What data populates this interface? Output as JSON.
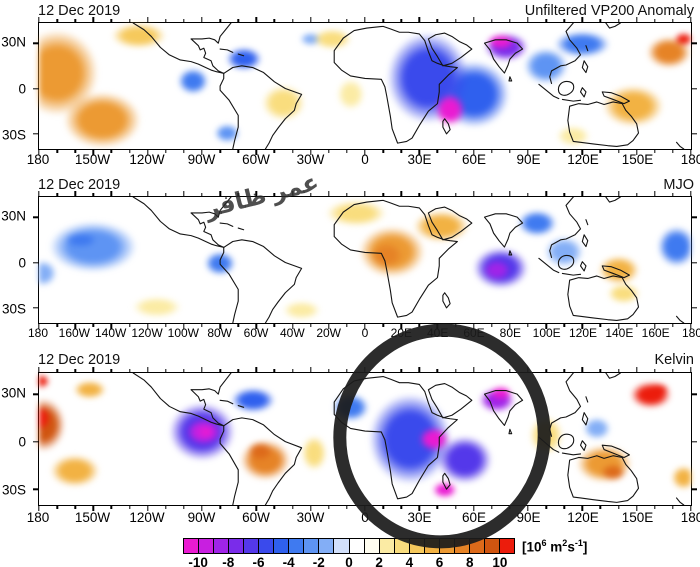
{
  "panels": [
    {
      "date": "12 Dec 2019",
      "title": "Unfiltered VP200 Anomaly",
      "lat_labels": [
        "30N",
        "0",
        "30S"
      ],
      "lon_labels": [
        "180",
        "150W",
        "120W",
        "90W",
        "60W",
        "30W",
        "0",
        "30E",
        "60E",
        "90E",
        "120E",
        "150E",
        "180"
      ],
      "minor_per_major": 3
    },
    {
      "date": "12 Dec 2019",
      "title": "MJO",
      "lat_labels": [
        "30N",
        "0",
        "30S"
      ],
      "lon_labels": [
        "180",
        "160W",
        "140W",
        "120W",
        "100W",
        "80W",
        "60W",
        "40W",
        "20W",
        "0",
        "20E",
        "40E",
        "60E",
        "80E",
        "100E",
        "120E",
        "140E",
        "160E",
        "180"
      ],
      "minor_per_major": 2
    },
    {
      "date": "12 Dec 2019",
      "title": "Kelvin",
      "lat_labels": [
        "30N",
        "0",
        "30S"
      ],
      "lon_labels": [
        "180",
        "150W",
        "120W",
        "90W",
        "60W",
        "30W",
        "0",
        "30E",
        "60E",
        "90E",
        "120E",
        "150E",
        "180"
      ],
      "minor_per_major": 3
    }
  ],
  "colorbar": {
    "ticks": [
      "-10",
      "-8",
      "-6",
      "-4",
      "-2",
      "0",
      "2",
      "4",
      "6",
      "8",
      "10"
    ],
    "value_range": [
      -11,
      11
    ],
    "colors": [
      "#ea1bd2",
      "#c81fe0",
      "#a024e8",
      "#7a2cea",
      "#5438ea",
      "#3a4aec",
      "#2f60ee",
      "#3f7af0",
      "#5e94f3",
      "#83aef6",
      "#d2e0fb",
      "#ffffff",
      "#fffdf0",
      "#fbeba4",
      "#f9dd7e",
      "#f6c95c",
      "#f2b243",
      "#ec9a33",
      "#e68326",
      "#dd6a1a",
      "#d05510",
      "#ec1c0c"
    ],
    "units_parts": {
      "open": "[10",
      "exp1": "6",
      "mid": " m",
      "exp2": "2",
      "s": "s",
      "exp3": "-1",
      "close": "]"
    }
  },
  "annotation": {
    "type": "hand-drawn-circle",
    "color": "#1c1c1c",
    "highlighted_region": "negative VP200 Kelvin-wave anomaly over Africa / Arabian Sea (approx 0-80E)"
  },
  "watermark": {
    "text": "عمر ظافر"
  },
  "chart_data": {
    "type": "heatmap",
    "subtype": "filled-contour velocity-potential anomaly maps, 3 stacked global panels",
    "date": "12 Dec 2019",
    "colorbar_ticks": [
      -10,
      -8,
      -6,
      -4,
      -2,
      0,
      2,
      4,
      6,
      8,
      10
    ],
    "units": "10^6 m2 s-1",
    "lat_range": [
      -37.5,
      37.5
    ],
    "lon_range": [
      -180,
      180
    ],
    "panels": [
      {
        "title": "Unfiltered VP200 Anomaly",
        "centers": [
          {
            "lon": -170,
            "lat": 8,
            "v": 6,
            "rx": 30,
            "ry": 34
          },
          {
            "lon": -145,
            "lat": -20,
            "v": 6,
            "rx": 28,
            "ry": 22
          },
          {
            "lon": -125,
            "lat": 30,
            "v": 4,
            "rx": 20,
            "ry": 10
          },
          {
            "lon": -95,
            "lat": 3,
            "v": -4,
            "rx": 11,
            "ry": 10
          },
          {
            "lon": -67,
            "lat": 16,
            "v": -5,
            "rx": 13,
            "ry": 9
          },
          {
            "lon": -76,
            "lat": -28,
            "v": -3,
            "rx": 9,
            "ry": 7
          },
          {
            "lon": -45,
            "lat": -10,
            "v": 3,
            "rx": 16,
            "ry": 14
          },
          {
            "lon": -18,
            "lat": 28,
            "v": 3,
            "rx": 14,
            "ry": 8
          },
          {
            "lon": -30,
            "lat": 28,
            "v": -2,
            "rx": 8,
            "ry": 5
          },
          {
            "lon": -8,
            "lat": -5,
            "v": 2,
            "rx": 10,
            "ry": 12
          },
          {
            "lon": 35,
            "lat": 5,
            "v": -6,
            "rx": 30,
            "ry": 36
          },
          {
            "lon": 60,
            "lat": -5,
            "v": -5,
            "rx": 26,
            "ry": 26
          },
          {
            "lon": 47,
            "lat": -14,
            "v": -11.5,
            "rx": 11,
            "ry": 13
          },
          {
            "lon": 75,
            "lat": 26,
            "v": -11.5,
            "rx": 10,
            "ry": 6
          },
          {
            "lon": 78,
            "lat": 23,
            "v": -8,
            "rx": 16,
            "ry": 11
          },
          {
            "lon": 100,
            "lat": 12,
            "v": -3,
            "rx": 16,
            "ry": 14
          },
          {
            "lon": 120,
            "lat": 25,
            "v": -4,
            "rx": 20,
            "ry": 10
          },
          {
            "lon": 115,
            "lat": -30,
            "v": 2,
            "rx": 12,
            "ry": 8
          },
          {
            "lon": 148,
            "lat": -12,
            "v": 5,
            "rx": 22,
            "ry": 16
          },
          {
            "lon": 168,
            "lat": 20,
            "v": 7,
            "rx": 16,
            "ry": 12
          },
          {
            "lon": 176,
            "lat": 28,
            "v": 10.5,
            "rx": 7,
            "ry": 5
          }
        ]
      },
      {
        "title": "MJO",
        "centers": [
          {
            "lon": -150,
            "lat": 8,
            "v": -3,
            "rx": 32,
            "ry": 20
          },
          {
            "lon": -157,
            "lat": 12,
            "v": -4,
            "rx": 12,
            "ry": 6
          },
          {
            "lon": -80,
            "lat": -2,
            "v": -4,
            "rx": 11,
            "ry": 9
          },
          {
            "lon": -115,
            "lat": -28,
            "v": 2,
            "rx": 18,
            "ry": 8
          },
          {
            "lon": -35,
            "lat": -30,
            "v": 2,
            "rx": 14,
            "ry": 7
          },
          {
            "lon": -5,
            "lat": 28,
            "v": 3,
            "rx": 22,
            "ry": 10
          },
          {
            "lon": 15,
            "lat": 5,
            "v": 6,
            "rx": 24,
            "ry": 20
          },
          {
            "lon": 12,
            "lat": 3,
            "v": 7.5,
            "rx": 12,
            "ry": 10
          },
          {
            "lon": 42,
            "lat": 20,
            "v": 5,
            "rx": 20,
            "ry": 12
          },
          {
            "lon": 75,
            "lat": -5,
            "v": -7,
            "rx": 20,
            "ry": 16
          },
          {
            "lon": 73,
            "lat": -6,
            "v": -8.5,
            "rx": 10,
            "ry": 8
          },
          {
            "lon": 95,
            "lat": 22,
            "v": -4,
            "rx": 14,
            "ry": 10
          },
          {
            "lon": 110,
            "lat": 5,
            "v": -2,
            "rx": 14,
            "ry": 12
          },
          {
            "lon": 140,
            "lat": -6,
            "v": 5,
            "rx": 15,
            "ry": 11
          },
          {
            "lon": 143,
            "lat": -20,
            "v": 3,
            "rx": 12,
            "ry": 8
          },
          {
            "lon": 172,
            "lat": 8,
            "v": -4,
            "rx": 14,
            "ry": 16
          },
          {
            "lon": -178,
            "lat": -8,
            "v": -2,
            "rx": 10,
            "ry": 10
          }
        ]
      },
      {
        "title": "Kelvin",
        "centers": [
          {
            "lon": -178,
            "lat": 8,
            "v": 9,
            "rx": 16,
            "ry": 20
          },
          {
            "lon": -179,
            "lat": 12,
            "v": 11.5,
            "rx": 7,
            "ry": 9
          },
          {
            "lon": -179,
            "lat": 33,
            "v": 10,
            "rx": 6,
            "ry": 5
          },
          {
            "lon": -160,
            "lat": -18,
            "v": 5,
            "rx": 18,
            "ry": 12
          },
          {
            "lon": -152,
            "lat": 28,
            "v": 5,
            "rx": 12,
            "ry": 7
          },
          {
            "lon": -90,
            "lat": 4,
            "v": -7,
            "rx": 24,
            "ry": 22
          },
          {
            "lon": -89,
            "lat": 4,
            "v": -9.5,
            "rx": 13,
            "ry": 10
          },
          {
            "lon": -88,
            "lat": 4,
            "v": -11.8,
            "rx": 5,
            "ry": 4
          },
          {
            "lon": -62,
            "lat": 22,
            "v": -5,
            "rx": 16,
            "ry": 9
          },
          {
            "lon": -55,
            "lat": -12,
            "v": 7,
            "rx": 18,
            "ry": 15
          },
          {
            "lon": -58,
            "lat": -7,
            "v": 8.5,
            "rx": 9,
            "ry": 7
          },
          {
            "lon": -28,
            "lat": -8,
            "v": 3,
            "rx": 9,
            "ry": 13
          },
          {
            "lon": -8,
            "lat": 18,
            "v": -4,
            "rx": 13,
            "ry": 10
          },
          {
            "lon": 25,
            "lat": 0,
            "v": -6,
            "rx": 30,
            "ry": 34
          },
          {
            "lon": 55,
            "lat": -12,
            "v": -7,
            "rx": 20,
            "ry": 18
          },
          {
            "lon": 38,
            "lat": 0,
            "v": -11.8,
            "rx": 11,
            "ry": 9
          },
          {
            "lon": 75,
            "lat": 26,
            "v": -11.8,
            "rx": 8,
            "ry": 5
          },
          {
            "lon": 73,
            "lat": 22,
            "v": -9,
            "rx": 13,
            "ry": 9
          },
          {
            "lon": 44,
            "lat": -29,
            "v": -11.5,
            "rx": 9,
            "ry": 6
          },
          {
            "lon": 100,
            "lat": 2,
            "v": 3,
            "rx": 12,
            "ry": 14
          },
          {
            "lon": 128,
            "lat": 6,
            "v": -2,
            "rx": 10,
            "ry": 8
          },
          {
            "lon": 132,
            "lat": -14,
            "v": 6,
            "rx": 20,
            "ry": 14
          },
          {
            "lon": 137,
            "lat": -19,
            "v": 8,
            "rx": 9,
            "ry": 6
          },
          {
            "lon": 158,
            "lat": 25,
            "v": 10.5,
            "rx": 15,
            "ry": 10
          },
          {
            "lon": 162,
            "lat": 28,
            "v": 11.8,
            "rx": 8,
            "ry": 5
          },
          {
            "lon": 176,
            "lat": -22,
            "v": 5,
            "rx": 9,
            "ry": 9
          }
        ]
      }
    ]
  }
}
